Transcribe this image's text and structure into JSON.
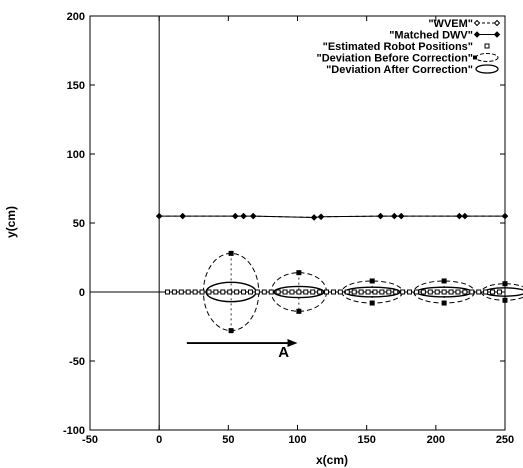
{
  "chart_data": {
    "type": "scatter",
    "xlabel": "x(cm)",
    "ylabel": "y(cm)",
    "xlim": [
      -50,
      250
    ],
    "ylim": [
      -100,
      200
    ],
    "x_ticks": [
      -50,
      0,
      50,
      100,
      150,
      200,
      250
    ],
    "y_ticks": [
      -100,
      -50,
      0,
      50,
      100,
      150,
      200
    ],
    "legend_position": "top-right",
    "grid": false,
    "series": [
      {
        "name": "\"WVEM\"",
        "style": "dashed line with open diamonds",
        "points": [
          [
            0,
            55
          ],
          [
            17,
            55
          ],
          [
            55,
            55
          ],
          [
            61,
            55
          ],
          [
            68,
            55
          ],
          [
            112,
            54
          ],
          [
            117,
            54.5
          ],
          [
            160,
            55
          ],
          [
            170,
            55
          ],
          [
            175,
            55
          ],
          [
            217,
            55
          ],
          [
            221,
            55
          ],
          [
            250,
            55
          ]
        ]
      },
      {
        "name": "\"Matched DWV\"",
        "style": "solid line with filled diamonds",
        "points": [
          [
            0,
            55
          ],
          [
            17,
            55
          ],
          [
            55,
            55
          ],
          [
            61,
            55
          ],
          [
            68,
            55
          ],
          [
            112,
            54
          ],
          [
            117,
            54.5
          ],
          [
            160,
            55
          ],
          [
            170,
            55
          ],
          [
            175,
            55
          ],
          [
            217,
            55
          ],
          [
            221,
            55
          ],
          [
            250,
            55
          ]
        ]
      },
      {
        "name": "\"Estimated Robot Positions\"",
        "style": "open squares",
        "points": [
          [
            6,
            0
          ],
          [
            11,
            0
          ],
          [
            16,
            0
          ],
          [
            21,
            0
          ],
          [
            26,
            0
          ],
          [
            31,
            0
          ],
          [
            36,
            0
          ],
          [
            41,
            0
          ],
          [
            46,
            0
          ],
          [
            51,
            0
          ],
          [
            56,
            0
          ],
          [
            61,
            0
          ],
          [
            66,
            0
          ],
          [
            71,
            0
          ],
          [
            76,
            0
          ],
          [
            81,
            0
          ],
          [
            86,
            0
          ],
          [
            91,
            0
          ],
          [
            96,
            0
          ],
          [
            101,
            0
          ],
          [
            106,
            0
          ],
          [
            111,
            0
          ],
          [
            116,
            0
          ],
          [
            121,
            0
          ],
          [
            126,
            0
          ],
          [
            131,
            0
          ],
          [
            136,
            0
          ],
          [
            141,
            0
          ],
          [
            146,
            0
          ],
          [
            151,
            0
          ],
          [
            156,
            0
          ],
          [
            161,
            0
          ],
          [
            166,
            0
          ],
          [
            171,
            0
          ],
          [
            176,
            0
          ],
          [
            181,
            0
          ],
          [
            186,
            0
          ],
          [
            191,
            0
          ],
          [
            196,
            0
          ],
          [
            201,
            0
          ],
          [
            206,
            0
          ],
          [
            211,
            0
          ],
          [
            216,
            0
          ],
          [
            221,
            0
          ],
          [
            226,
            0
          ],
          [
            231,
            0
          ],
          [
            236,
            0
          ],
          [
            241,
            0
          ],
          [
            246,
            0
          ]
        ]
      },
      {
        "name": "\"Deviation Before Correction\"",
        "style": "dashed ellipses",
        "ellipses": [
          {
            "cx": 52,
            "cy": 0,
            "rx": 20,
            "ry": 28
          },
          {
            "cx": 101,
            "cy": 0,
            "rx": 20,
            "ry": 14
          },
          {
            "cx": 154,
            "cy": 0,
            "rx": 22,
            "ry": 8
          },
          {
            "cx": 206,
            "cy": 0,
            "rx": 22,
            "ry": 8
          },
          {
            "cx": 250,
            "cy": 0,
            "rx": 17,
            "ry": 6
          }
        ]
      },
      {
        "name": "\"Deviation After Correction\"",
        "style": "solid ellipses",
        "ellipses": [
          {
            "cx": 52,
            "cy": 0,
            "rx": 18,
            "ry": 7
          },
          {
            "cx": 101,
            "cy": 0,
            "rx": 18,
            "ry": 4
          },
          {
            "cx": 154,
            "cy": 0,
            "rx": 20,
            "ry": 3.5
          },
          {
            "cx": 206,
            "cy": 0,
            "rx": 20,
            "ry": 3.5
          },
          {
            "cx": 250,
            "cy": 0,
            "rx": 15,
            "ry": 3
          }
        ]
      }
    ],
    "annotations": [
      {
        "text": "A",
        "arrow_from": [
          20,
          -37
        ],
        "arrow_to": [
          100,
          -37
        ],
        "label_at": [
          90,
          -47
        ]
      }
    ]
  }
}
